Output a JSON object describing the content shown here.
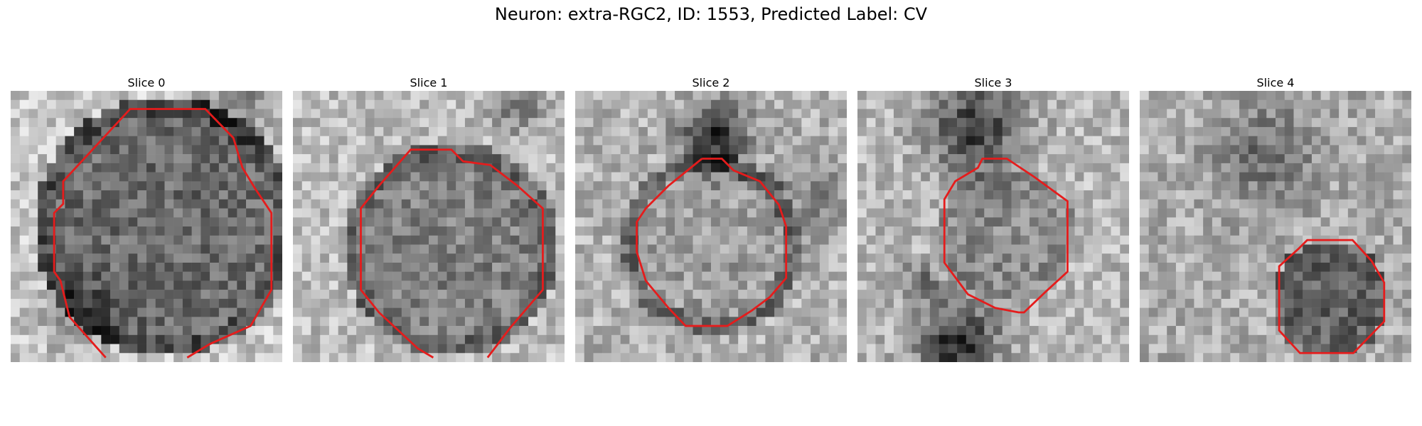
{
  "figure": {
    "title": "Neuron: extra-RGC2, ID: 1553, Predicted Label: CV"
  },
  "panels": [
    {
      "title": "Slice 0"
    },
    {
      "title": "Slice 1"
    },
    {
      "title": "Slice 2"
    },
    {
      "title": "Slice 3"
    },
    {
      "title": "Slice 4"
    }
  ],
  "colors": {
    "contour": "#e51c1c",
    "background": "#ffffff"
  }
}
